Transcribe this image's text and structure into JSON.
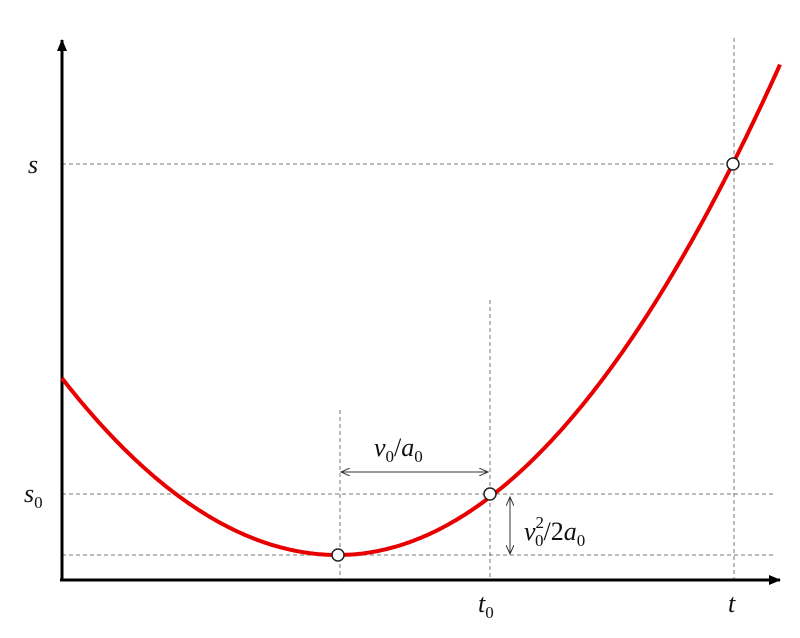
{
  "labels": {
    "s": [
      {
        "text": "s"
      }
    ],
    "s0": [
      {
        "text": "s"
      },
      {
        "sub": "0"
      }
    ],
    "t0": [
      {
        "text": "t"
      },
      {
        "sub": "0"
      }
    ],
    "t": [
      {
        "text": "t"
      }
    ],
    "time_offset": [
      {
        "text": "v"
      },
      {
        "sub": "0"
      },
      {
        "op": "/"
      },
      {
        "text": "a"
      },
      {
        "sub": "0"
      }
    ],
    "depth": [
      {
        "text": "v"
      },
      {
        "sup": "2",
        "sub": "0"
      },
      {
        "op": "/2"
      },
      {
        "text": "a"
      },
      {
        "sub": "0"
      }
    ]
  }
}
